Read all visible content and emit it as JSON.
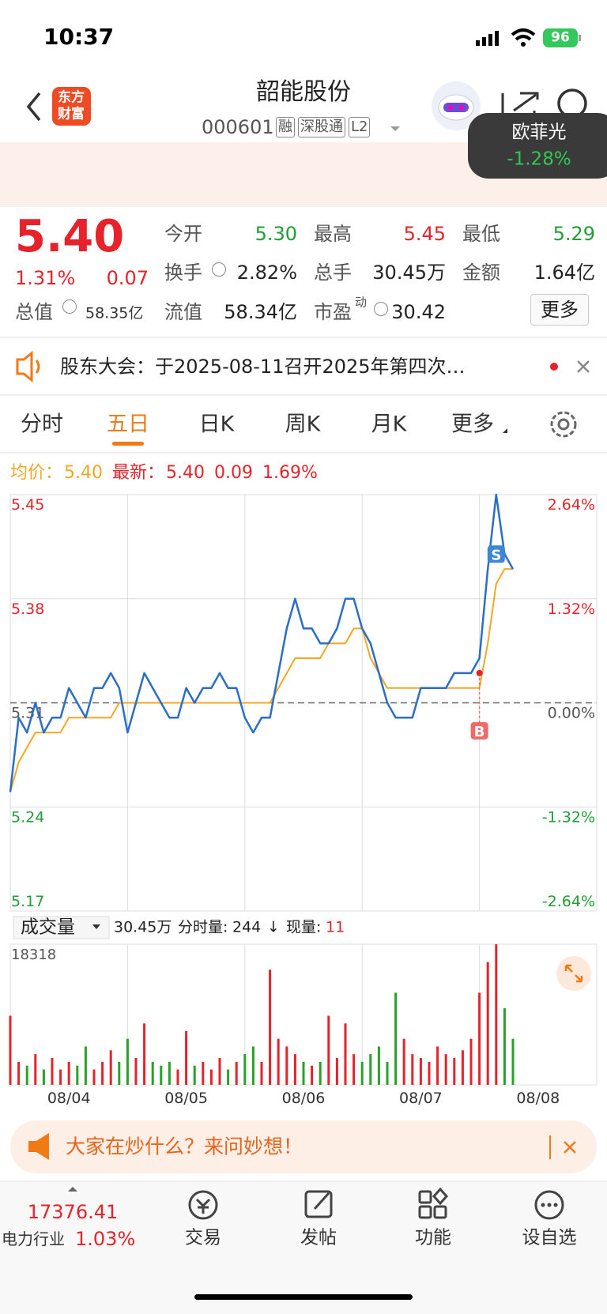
{
  "status_bar": {
    "time": "10:37",
    "battery": "96"
  },
  "header": {
    "logo": [
      "东方",
      "财富"
    ],
    "title": "韶能股份",
    "code": "000601",
    "badges": [
      "融",
      "深股通",
      "L2"
    ]
  },
  "popup": {
    "name": "欧菲光",
    "change": "-1.28%"
  },
  "quote": {
    "price": "5.40",
    "change_pct": "1.31%",
    "change": "0.07",
    "total_value": {
      "label": "总值",
      "value": "58.35亿"
    },
    "stats": [
      {
        "label": "今开",
        "value": "5.30",
        "color": "#1e9e35"
      },
      {
        "label": "最高",
        "value": "5.45",
        "color": "#e6232a"
      },
      {
        "label": "最低",
        "value": "5.29",
        "color": "#1e9e35"
      },
      {
        "label": "换手",
        "value": "2.82%",
        "color": "#222222"
      },
      {
        "label": "总手",
        "value": "30.45万",
        "color": "#222222"
      },
      {
        "label": "金额",
        "value": "1.64亿",
        "color": "#222222"
      },
      {
        "label": "流值",
        "value": "58.34亿",
        "color": "#222222"
      },
      {
        "label": "市盈",
        "sup": "动",
        "value": "30.42",
        "color": "#222222"
      }
    ],
    "more": "更多"
  },
  "notice": {
    "text": "股东大会：于2025-08-11召开2025年第四次…"
  },
  "tabs": {
    "items": [
      "分时",
      "五日",
      "日K",
      "周K",
      "月K",
      "更多"
    ],
    "active": 1
  },
  "chart_info": {
    "avg_label": "均价：",
    "avg": "5.40",
    "latest_label": "最新：",
    "latest": "5.40",
    "change": "0.09",
    "change_pct": "1.69%"
  },
  "price_chart": {
    "type": "line",
    "categories": [
      "08/04",
      "08/05",
      "08/06",
      "08/07",
      "08/08"
    ],
    "ylim": [
      5.17,
      5.45
    ],
    "yticks": [
      5.45,
      5.38,
      5.31,
      5.24,
      5.17
    ],
    "y2lim": [
      -2.64,
      2.64
    ],
    "y2ticks": [
      {
        "value": 2.64,
        "label": "2.64%"
      },
      {
        "value": 1.32,
        "label": "1.32%"
      },
      {
        "value": 0,
        "label": "0.00%"
      },
      {
        "value": -1.32,
        "label": "-1.32%"
      },
      {
        "value": -2.64,
        "label": "-2.64%"
      }
    ],
    "grid": true,
    "series": [
      {
        "name": "价格",
        "color": "#2a6ec8",
        "values": [
          5.25,
          5.3,
          5.29,
          5.31,
          5.29,
          5.3,
          5.3,
          5.32,
          5.31,
          5.3,
          5.32,
          5.32,
          5.33,
          5.32,
          5.29,
          5.31,
          5.33,
          5.32,
          5.31,
          5.3,
          5.3,
          5.32,
          5.31,
          5.32,
          5.32,
          5.33,
          5.32,
          5.32,
          5.3,
          5.29,
          5.3,
          5.3,
          5.33,
          5.36,
          5.38,
          5.36,
          5.36,
          5.35,
          5.35,
          5.36,
          5.38,
          5.38,
          5.36,
          5.35,
          5.33,
          5.31,
          5.3,
          5.3,
          5.3,
          5.32,
          5.32,
          5.32,
          5.32,
          5.33,
          5.33,
          5.33,
          5.34,
          5.4,
          5.45,
          5.41,
          5.4,
          null,
          null,
          null,
          null,
          null,
          null,
          null,
          null,
          null,
          null
        ]
      },
      {
        "name": "均价",
        "color": "#f5a623",
        "values": [
          5.25,
          5.27,
          5.28,
          5.29,
          5.29,
          5.29,
          5.29,
          5.3,
          5.3,
          5.3,
          5.3,
          5.3,
          5.3,
          5.31,
          5.31,
          5.31,
          5.31,
          5.31,
          5.31,
          5.31,
          5.31,
          5.31,
          5.31,
          5.31,
          5.31,
          5.31,
          5.31,
          5.31,
          5.31,
          5.31,
          5.31,
          5.31,
          5.32,
          5.33,
          5.34,
          5.34,
          5.34,
          5.34,
          5.35,
          5.35,
          5.35,
          5.36,
          5.36,
          5.34,
          5.33,
          5.32,
          5.32,
          5.32,
          5.32,
          5.32,
          5.32,
          5.32,
          5.32,
          5.32,
          5.32,
          5.32,
          5.32,
          5.35,
          5.39,
          5.4,
          5.4,
          null,
          null,
          null,
          null,
          null,
          null,
          null,
          null,
          null,
          null
        ]
      }
    ],
    "signals": [
      {
        "label": "B",
        "at": 56,
        "price": 5.33,
        "color": "#f06a6a"
      },
      {
        "label": "S",
        "at": 58,
        "price": 5.41,
        "color": "#3d86d8"
      }
    ]
  },
  "volume_header": {
    "selector": "成交量",
    "total": "30.45万",
    "tick_label": "分时量:",
    "tick_value": "244",
    "arrow": "↓",
    "now_label": "现量:",
    "now_value": "11"
  },
  "volume_chart": {
    "type": "bar",
    "ylim": [
      0,
      18318
    ],
    "yticks": [
      18318
    ],
    "up_color": "#e6232a",
    "down_color": "#2aa02a",
    "values": [
      9000,
      3000,
      2500,
      4000,
      2000,
      3500,
      2000,
      3000,
      2500,
      5000,
      2000,
      3000,
      4500,
      3000,
      6000,
      3500,
      8000,
      3000,
      2500,
      3000,
      2000,
      7000,
      2500,
      3000,
      2000,
      3500,
      2000,
      3000,
      4000,
      5000,
      3000,
      15000,
      6000,
      5000,
      4000,
      3000,
      2500,
      3000,
      9000,
      3500,
      8000,
      4000,
      3000,
      4000,
      5000,
      3000,
      12000,
      6000,
      4000,
      3500,
      3000,
      5000,
      4000,
      3500,
      4500,
      6000,
      12000,
      16000,
      18318,
      10000,
      6000,
      null,
      null,
      null,
      null,
      null,
      null,
      null,
      null,
      null,
      null
    ]
  },
  "banner": {
    "text": "大家在炒什么？来问妙想！"
  },
  "bottom_nav": {
    "index_value": "17376.41",
    "index_name": "电力行业",
    "index_change": "1.03%",
    "items": [
      "交易",
      "发帖",
      "功能",
      "设自选"
    ]
  }
}
